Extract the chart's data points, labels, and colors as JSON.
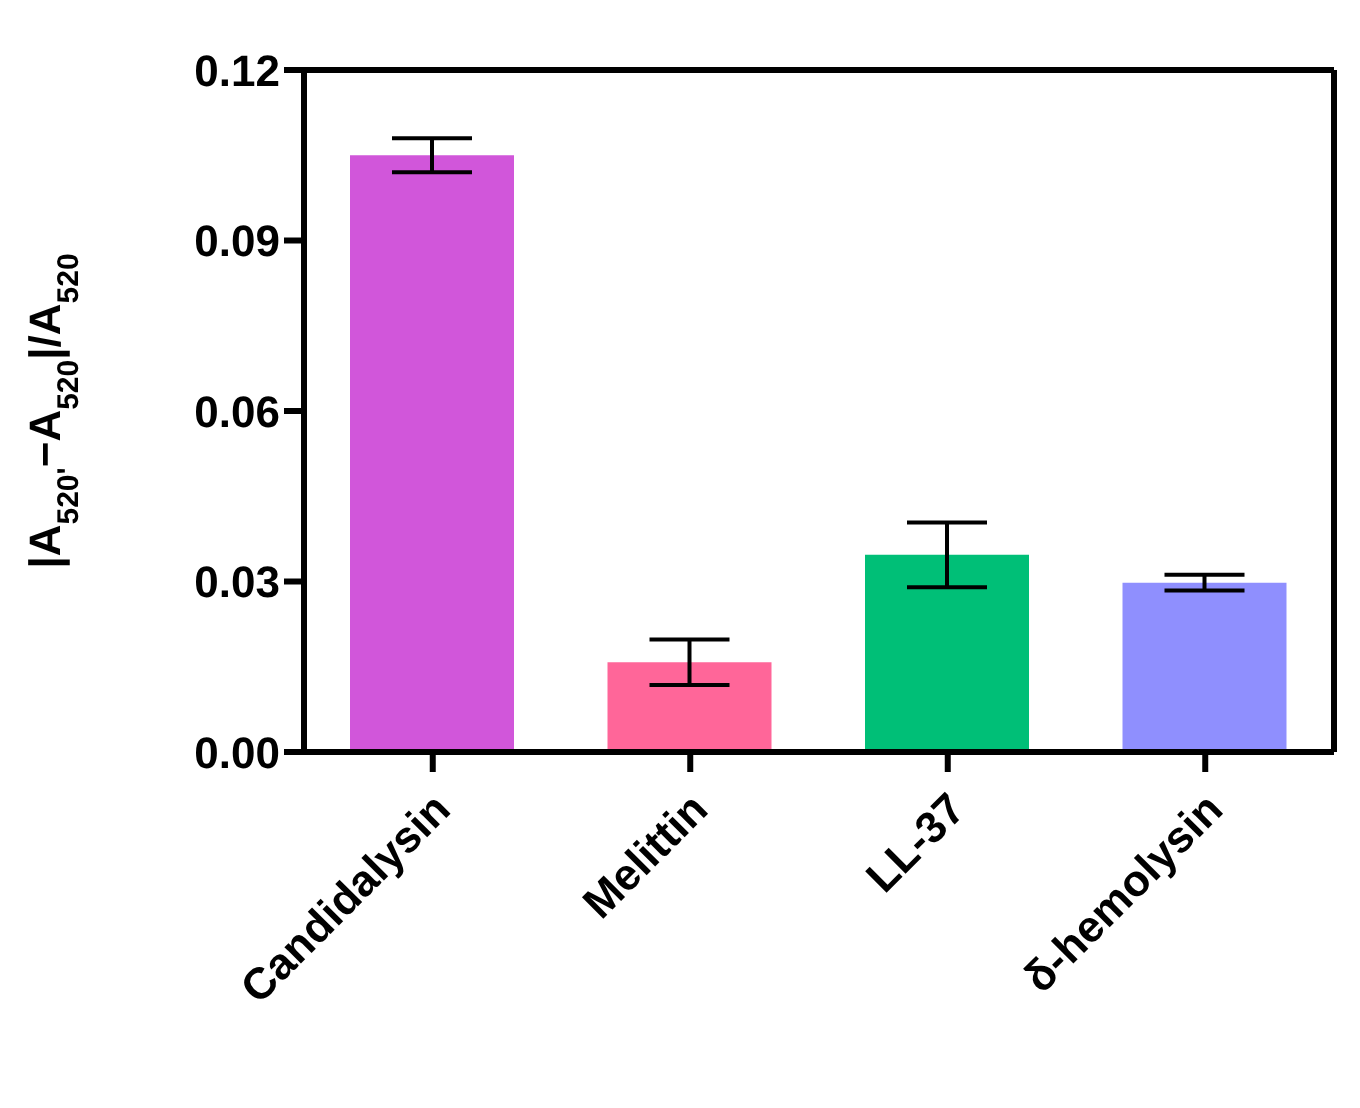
{
  "chart_data": {
    "type": "bar",
    "ylabel": "|A$_{520'}$−A$_{520}$|/A$_{520}$",
    "categories": [
      "Candidalysin",
      "Melittin",
      "LL-37",
      "δ-hemolysin"
    ],
    "values": [
      0.105,
      0.0158,
      0.0347,
      0.0298
    ],
    "errors": [
      0.003,
      0.004,
      0.0057,
      0.0014
    ],
    "colors": [
      "#d156da",
      "#ff6699",
      "#00bf77",
      "#8f8ffe"
    ],
    "ylim": [
      0,
      0.12
    ],
    "yticks": [
      {
        "value": 0,
        "label": "0.00"
      },
      0.03,
      0.06,
      0.09,
      0.12
    ],
    "grid": false,
    "legend": false
  }
}
